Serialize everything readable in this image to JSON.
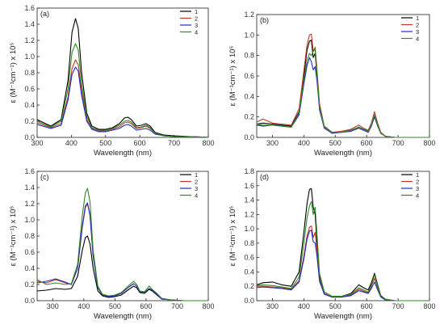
{
  "colors": {
    "1": "#000000",
    "2": "#c0392b",
    "3": "#1f2bbf",
    "4": "#2e8b22"
  },
  "chart_data": [
    {
      "type": "line",
      "panel_label": "(a)",
      "xlabel": "Wavelength (nm)",
      "ylabel": "ε (M⁻¹cm⁻¹) x 10⁵",
      "xlim": [
        300,
        800
      ],
      "ylim": [
        0,
        1.6
      ],
      "xticks": [
        300,
        400,
        500,
        600,
        700,
        800
      ],
      "yticks": [
        0.0,
        0.2,
        0.4,
        0.6,
        0.8,
        1.0,
        1.2,
        1.4,
        1.6
      ],
      "series": [
        {
          "name": "1",
          "x": [
            300,
            340,
            370,
            390,
            402,
            412,
            420,
            430,
            445,
            460,
            480,
            500,
            520,
            540,
            555,
            565,
            575,
            590,
            605,
            618,
            630,
            645,
            670,
            700,
            750,
            800
          ],
          "y": [
            0.22,
            0.14,
            0.22,
            0.7,
            1.3,
            1.47,
            1.35,
            0.8,
            0.3,
            0.14,
            0.1,
            0.1,
            0.12,
            0.17,
            0.24,
            0.25,
            0.22,
            0.14,
            0.15,
            0.17,
            0.14,
            0.06,
            0.03,
            0.02,
            0.01,
            0.0
          ]
        },
        {
          "name": "2",
          "x": [
            300,
            340,
            370,
            390,
            402,
            412,
            420,
            430,
            445,
            460,
            480,
            500,
            520,
            540,
            555,
            565,
            575,
            590,
            605,
            618,
            630,
            645,
            670,
            700,
            750,
            800
          ],
          "y": [
            0.18,
            0.12,
            0.17,
            0.5,
            0.85,
            0.96,
            0.9,
            0.58,
            0.22,
            0.11,
            0.08,
            0.08,
            0.1,
            0.13,
            0.18,
            0.19,
            0.17,
            0.11,
            0.12,
            0.14,
            0.11,
            0.05,
            0.02,
            0.01,
            0.01,
            0.0
          ]
        },
        {
          "name": "3",
          "x": [
            300,
            340,
            370,
            390,
            402,
            412,
            420,
            430,
            445,
            460,
            480,
            500,
            520,
            540,
            555,
            565,
            575,
            590,
            605,
            618,
            630,
            645,
            670,
            700,
            750,
            800
          ],
          "y": [
            0.16,
            0.11,
            0.15,
            0.46,
            0.78,
            0.87,
            0.82,
            0.52,
            0.2,
            0.1,
            0.07,
            0.07,
            0.09,
            0.11,
            0.15,
            0.16,
            0.14,
            0.09,
            0.1,
            0.11,
            0.09,
            0.04,
            0.02,
            0.01,
            0.01,
            0.0
          ]
        },
        {
          "name": "4",
          "x": [
            300,
            340,
            370,
            390,
            402,
            412,
            420,
            430,
            445,
            460,
            480,
            500,
            520,
            540,
            555,
            565,
            575,
            590,
            605,
            618,
            630,
            645,
            670,
            700,
            750,
            800
          ],
          "y": [
            0.2,
            0.13,
            0.2,
            0.6,
            1.05,
            1.16,
            1.08,
            0.66,
            0.26,
            0.12,
            0.09,
            0.09,
            0.11,
            0.15,
            0.2,
            0.21,
            0.19,
            0.12,
            0.13,
            0.15,
            0.12,
            0.05,
            0.02,
            0.01,
            0.01,
            0.0
          ]
        }
      ]
    },
    {
      "type": "line",
      "panel_label": "(b)",
      "xlabel": "Wavelength (nm)",
      "ylabel": "ε (M⁻¹cm⁻¹) x 10⁵",
      "xlim": [
        250,
        800
      ],
      "ylim": [
        0,
        1.2
      ],
      "xticks": [
        300,
        400,
        500,
        600,
        700,
        800
      ],
      "yticks": [
        0.0,
        0.2,
        0.4,
        0.6,
        0.8,
        1.0,
        1.2
      ],
      "series": [
        {
          "name": "1",
          "x": [
            250,
            270,
            300,
            330,
            360,
            385,
            400,
            410,
            418,
            424,
            430,
            436,
            442,
            450,
            465,
            490,
            520,
            550,
            575,
            590,
            605,
            615,
            625,
            635,
            645,
            660,
            690,
            720,
            760,
            800
          ],
          "y": [
            0.13,
            0.14,
            0.13,
            0.12,
            0.11,
            0.25,
            0.6,
            0.85,
            0.94,
            0.95,
            0.78,
            0.82,
            0.6,
            0.3,
            0.1,
            0.05,
            0.05,
            0.07,
            0.1,
            0.08,
            0.06,
            0.12,
            0.21,
            0.12,
            0.04,
            0.01,
            0.0,
            0.0,
            0.0,
            0.0
          ]
        },
        {
          "name": "2",
          "x": [
            250,
            270,
            300,
            330,
            360,
            385,
            400,
            410,
            418,
            424,
            430,
            436,
            442,
            450,
            465,
            490,
            520,
            550,
            575,
            590,
            605,
            615,
            625,
            635,
            645,
            660,
            690,
            720,
            760,
            800
          ],
          "y": [
            0.15,
            0.18,
            0.14,
            0.13,
            0.12,
            0.28,
            0.65,
            0.9,
            1.0,
            1.01,
            0.84,
            0.88,
            0.66,
            0.33,
            0.11,
            0.05,
            0.06,
            0.08,
            0.12,
            0.09,
            0.07,
            0.14,
            0.25,
            0.14,
            0.05,
            0.01,
            0.0,
            0.0,
            0.0,
            0.0
          ]
        },
        {
          "name": "3",
          "x": [
            250,
            270,
            300,
            330,
            360,
            385,
            400,
            410,
            418,
            424,
            430,
            436,
            442,
            450,
            465,
            490,
            520,
            550,
            575,
            590,
            605,
            615,
            625,
            635,
            645,
            660,
            690,
            720,
            760,
            800
          ],
          "y": [
            0.12,
            0.11,
            0.12,
            0.11,
            0.1,
            0.22,
            0.52,
            0.7,
            0.78,
            0.74,
            0.66,
            0.69,
            0.55,
            0.27,
            0.09,
            0.04,
            0.05,
            0.06,
            0.09,
            0.07,
            0.05,
            0.11,
            0.2,
            0.11,
            0.04,
            0.01,
            0.0,
            0.0,
            0.0,
            0.0
          ]
        },
        {
          "name": "4",
          "x": [
            250,
            270,
            300,
            330,
            360,
            385,
            400,
            410,
            418,
            424,
            430,
            436,
            442,
            450,
            465,
            490,
            520,
            550,
            575,
            590,
            605,
            615,
            625,
            635,
            645,
            660,
            690,
            720,
            760,
            800
          ],
          "y": [
            0.13,
            0.12,
            0.12,
            0.11,
            0.1,
            0.24,
            0.56,
            0.75,
            0.82,
            0.8,
            0.84,
            0.86,
            0.62,
            0.3,
            0.1,
            0.05,
            0.05,
            0.07,
            0.1,
            0.08,
            0.06,
            0.12,
            0.22,
            0.12,
            0.04,
            0.01,
            0.0,
            0.0,
            0.0,
            0.0
          ]
        }
      ]
    },
    {
      "type": "line",
      "panel_label": "(c)",
      "xlabel": "Wavelength (nm)",
      "ylabel": "ε (M⁻¹cm⁻¹) x 10⁵",
      "xlim": [
        250,
        800
      ],
      "ylim": [
        0,
        1.6
      ],
      "xticks": [
        300,
        400,
        500,
        600,
        700,
        800
      ],
      "yticks": [
        0.0,
        0.2,
        0.4,
        0.6,
        0.8,
        1.0,
        1.2,
        1.4,
        1.6
      ],
      "series": [
        {
          "name": "1",
          "x": [
            250,
            280,
            310,
            340,
            360,
            380,
            395,
            405,
            412,
            420,
            430,
            445,
            460,
            480,
            500,
            520,
            545,
            560,
            570,
            580,
            595,
            610,
            620,
            635,
            650,
            680,
            720,
            800
          ],
          "y": [
            0.12,
            0.13,
            0.15,
            0.14,
            0.15,
            0.3,
            0.62,
            0.78,
            0.8,
            0.7,
            0.4,
            0.12,
            0.06,
            0.04,
            0.05,
            0.07,
            0.14,
            0.18,
            0.16,
            0.1,
            0.09,
            0.14,
            0.12,
            0.07,
            0.02,
            0.01,
            0.0,
            0.0
          ]
        },
        {
          "name": "2",
          "x": [
            250,
            280,
            310,
            340,
            360,
            380,
            395,
            405,
            412,
            420,
            430,
            445,
            460,
            480,
            500,
            520,
            545,
            560,
            570,
            580,
            595,
            610,
            620,
            635,
            650,
            680,
            720,
            800
          ],
          "y": [
            0.24,
            0.22,
            0.26,
            0.22,
            0.2,
            0.4,
            0.9,
            1.15,
            1.2,
            1.05,
            0.55,
            0.16,
            0.07,
            0.05,
            0.06,
            0.09,
            0.17,
            0.21,
            0.18,
            0.11,
            0.1,
            0.15,
            0.13,
            0.08,
            0.02,
            0.01,
            0.0,
            0.0
          ]
        },
        {
          "name": "3",
          "x": [
            250,
            280,
            310,
            340,
            360,
            380,
            395,
            405,
            412,
            420,
            430,
            445,
            460,
            480,
            500,
            520,
            545,
            560,
            570,
            580,
            595,
            610,
            620,
            635,
            650,
            680,
            720,
            800
          ],
          "y": [
            0.22,
            0.24,
            0.27,
            0.23,
            0.2,
            0.4,
            0.92,
            1.17,
            1.21,
            1.06,
            0.55,
            0.16,
            0.07,
            0.05,
            0.06,
            0.09,
            0.17,
            0.21,
            0.18,
            0.11,
            0.1,
            0.15,
            0.13,
            0.08,
            0.02,
            0.01,
            0.0,
            0.0
          ]
        },
        {
          "name": "4",
          "x": [
            250,
            280,
            310,
            340,
            360,
            380,
            395,
            405,
            412,
            420,
            430,
            445,
            460,
            480,
            500,
            520,
            545,
            560,
            570,
            580,
            595,
            610,
            620,
            635,
            650,
            680,
            720,
            800
          ],
          "y": [
            0.26,
            0.2,
            0.22,
            0.2,
            0.21,
            0.45,
            1.05,
            1.33,
            1.39,
            1.22,
            0.62,
            0.18,
            0.08,
            0.06,
            0.07,
            0.1,
            0.19,
            0.24,
            0.2,
            0.12,
            0.11,
            0.18,
            0.14,
            0.09,
            0.03,
            0.01,
            0.0,
            0.0
          ]
        }
      ]
    },
    {
      "type": "line",
      "panel_label": "(d)",
      "xlabel": "Wavelength (nm)",
      "ylabel": "ε (M⁻¹cm⁻¹) x 10⁵",
      "xlim": [
        250,
        800
      ],
      "ylim": [
        0,
        1.8
      ],
      "xticks": [
        300,
        400,
        500,
        600,
        700,
        800
      ],
      "yticks": [
        0.0,
        0.2,
        0.4,
        0.6,
        0.8,
        1.0,
        1.2,
        1.4,
        1.6,
        1.8
      ],
      "series": [
        {
          "name": "1",
          "x": [
            250,
            270,
            300,
            330,
            360,
            385,
            400,
            410,
            418,
            424,
            430,
            436,
            442,
            450,
            465,
            490,
            520,
            550,
            575,
            590,
            605,
            615,
            625,
            635,
            645,
            660,
            690,
            720,
            760,
            800
          ],
          "y": [
            0.22,
            0.25,
            0.26,
            0.22,
            0.2,
            0.4,
            0.95,
            1.35,
            1.55,
            1.56,
            1.3,
            1.2,
            0.8,
            0.35,
            0.12,
            0.06,
            0.06,
            0.1,
            0.22,
            0.18,
            0.15,
            0.25,
            0.38,
            0.22,
            0.07,
            0.02,
            0.0,
            0.0,
            0.0,
            0.0
          ]
        },
        {
          "name": "2",
          "x": [
            250,
            270,
            300,
            330,
            360,
            385,
            400,
            410,
            418,
            424,
            430,
            436,
            442,
            450,
            465,
            490,
            520,
            550,
            575,
            590,
            605,
            615,
            625,
            635,
            645,
            660,
            690,
            720,
            760,
            800
          ],
          "y": [
            0.2,
            0.2,
            0.19,
            0.18,
            0.16,
            0.28,
            0.62,
            0.9,
            1.02,
            1.04,
            0.88,
            0.95,
            0.7,
            0.3,
            0.1,
            0.05,
            0.05,
            0.08,
            0.16,
            0.13,
            0.11,
            0.2,
            0.31,
            0.18,
            0.06,
            0.01,
            0.0,
            0.0,
            0.0,
            0.0
          ]
        },
        {
          "name": "3",
          "x": [
            250,
            270,
            300,
            330,
            360,
            385,
            400,
            410,
            418,
            424,
            430,
            436,
            442,
            450,
            465,
            490,
            520,
            550,
            575,
            590,
            605,
            615,
            625,
            635,
            645,
            660,
            690,
            720,
            760,
            800
          ],
          "y": [
            0.18,
            0.19,
            0.18,
            0.17,
            0.15,
            0.26,
            0.58,
            0.85,
            0.97,
            0.98,
            0.82,
            0.8,
            0.62,
            0.27,
            0.09,
            0.05,
            0.05,
            0.07,
            0.14,
            0.12,
            0.1,
            0.17,
            0.26,
            0.15,
            0.05,
            0.01,
            0.0,
            0.0,
            0.0,
            0.0
          ]
        },
        {
          "name": "4",
          "x": [
            250,
            270,
            300,
            330,
            360,
            385,
            400,
            410,
            418,
            424,
            430,
            436,
            442,
            450,
            465,
            490,
            520,
            550,
            575,
            590,
            605,
            615,
            625,
            635,
            645,
            660,
            690,
            720,
            760,
            800
          ],
          "y": [
            0.21,
            0.22,
            0.21,
            0.19,
            0.17,
            0.33,
            0.8,
            1.15,
            1.32,
            1.38,
            1.2,
            1.3,
            0.92,
            0.38,
            0.12,
            0.06,
            0.06,
            0.09,
            0.18,
            0.15,
            0.12,
            0.22,
            0.36,
            0.2,
            0.06,
            0.02,
            0.0,
            0.0,
            0.0,
            0.0
          ]
        }
      ]
    }
  ]
}
